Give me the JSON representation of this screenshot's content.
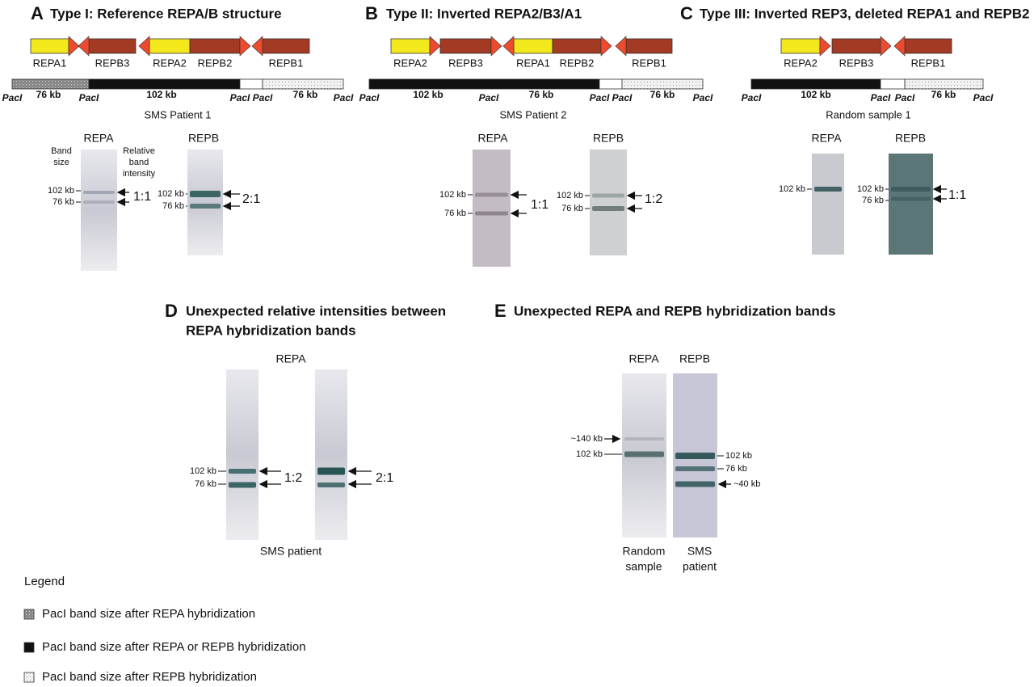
{
  "panels": [
    {
      "letter": "A",
      "title": "Type I: Reference REPA/B structure",
      "genes": [
        "REPA1",
        "REPB3",
        "REPA2",
        "REPB2",
        "REPB1"
      ],
      "fragments": [
        "76 kb",
        "102 kb",
        "76 kb"
      ],
      "sites": [
        "PacI",
        "PacI",
        "PacI",
        "PacI",
        "PacI"
      ],
      "sample": "SMS Patient 1",
      "headers": [
        [
          "Band",
          "size"
        ],
        [
          "Relative",
          "band",
          "intensity"
        ]
      ],
      "blots": [
        {
          "probe": "REPA",
          "markers": [
            "102 kb",
            "76 kb"
          ],
          "ratio": "1:1"
        },
        {
          "probe": "REPB",
          "markers": [
            "102 kb",
            "76 kb"
          ],
          "ratio": "2:1"
        }
      ]
    },
    {
      "letter": "B",
      "title": "Type II: Inverted REPA2/B3/A1",
      "genes": [
        "REPA2",
        "REPB3",
        "REPA1",
        "REPB2",
        "REPB1"
      ],
      "fragments": [
        "102 kb",
        "76 kb",
        "76 kb"
      ],
      "sites": [
        "PacI",
        "PacI",
        "PacI",
        "PacI",
        "PacI"
      ],
      "sample": "SMS Patient 2",
      "blots": [
        {
          "probe": "REPA",
          "markers": [
            "102 kb",
            "76 kb"
          ],
          "ratio": "1:1"
        },
        {
          "probe": "REPB",
          "markers": [
            "102 kb",
            "76 kb"
          ],
          "ratio": "1:2"
        }
      ]
    },
    {
      "letter": "C",
      "title": "Type III: Inverted REP3, deleted REPA1 and REPB2",
      "genes": [
        "REPA2",
        "REPB3",
        "REPB1"
      ],
      "fragments": [
        "102 kb",
        "76 kb"
      ],
      "sites": [
        "PacI",
        "PacI",
        "PacI",
        "PacI"
      ],
      "sample": "Random sample 1",
      "blots": [
        {
          "probe": "REPA",
          "markers": [
            "102 kb"
          ]
        },
        {
          "probe": "REPB",
          "markers": [
            "102 kb",
            "76 kb"
          ],
          "ratio": "1:1"
        }
      ]
    },
    {
      "letter": "D",
      "title": [
        "Unexpected relative intensities between",
        "REPA hybridization bands"
      ],
      "probe": "REPA",
      "sample": "SMS patient",
      "blots": [
        {
          "markers": [
            "102 kb",
            "76 kb"
          ],
          "ratio": "1:2"
        },
        {
          "ratio": "2:1"
        }
      ]
    },
    {
      "letter": "E",
      "title": "Unexpected REPA and REPB hybridization bands",
      "blots": [
        {
          "probe": "REPA",
          "markers": [
            "~140 kb",
            "102 kb"
          ],
          "label": [
            "Random",
            "sample"
          ]
        },
        {
          "probe": "REPB",
          "markers": [
            "102 kb",
            "76 kb",
            "~40 kb"
          ],
          "label": [
            "SMS",
            "patient"
          ]
        }
      ]
    }
  ],
  "legend": {
    "title": "Legend",
    "items": [
      "PacI band size after REPA hybridization",
      "PacI band size after REPA or REPB hybridization",
      "PacI band size after REPB hybridization"
    ]
  }
}
